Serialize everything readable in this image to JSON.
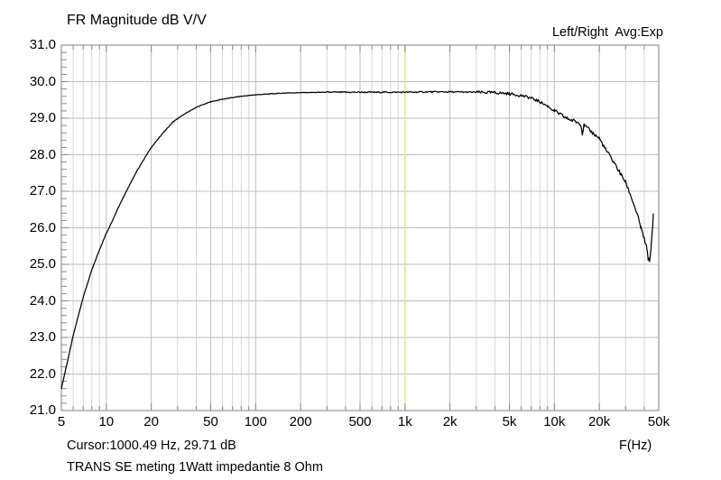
{
  "header": {
    "title": "FR Magnitude dB V/V",
    "channel_mode": "Left/Right  Avg:Exp"
  },
  "footer": {
    "cursor_readout": "Cursor:1000.49 Hz, 29.71 dB",
    "x_axis_unit": "F(Hz)",
    "comment": "TRANS SE meting 1Watt impedantie 8 Ohm"
  },
  "chart_data": {
    "type": "line",
    "title": "FR Magnitude dB V/V",
    "xlabel": "F(Hz)",
    "ylabel": "dB V/V",
    "x_scale": "log",
    "x_range_hz": [
      5,
      50000
    ],
    "y_range_db": [
      21.0,
      31.0
    ],
    "y_tick_step": 1.0,
    "y_minor_tick_step": 0.2,
    "grid": true,
    "legend_position": "top-right",
    "x_ticks": [
      {
        "label": "5",
        "hz": 5
      },
      {
        "label": "10",
        "hz": 10
      },
      {
        "label": "20",
        "hz": 20
      },
      {
        "label": "50",
        "hz": 50
      },
      {
        "label": "100",
        "hz": 100
      },
      {
        "label": "200",
        "hz": 200
      },
      {
        "label": "500",
        "hz": 500
      },
      {
        "label": "1k",
        "hz": 1000
      },
      {
        "label": "2k",
        "hz": 2000
      },
      {
        "label": "5k",
        "hz": 5000
      },
      {
        "label": "10k",
        "hz": 10000
      },
      {
        "label": "20k",
        "hz": 20000
      },
      {
        "label": "50k",
        "hz": 50000
      }
    ],
    "y_ticks": [
      {
        "label": "31.0",
        "db": 31.0
      },
      {
        "label": "30.0",
        "db": 30.0
      },
      {
        "label": "29.0",
        "db": 29.0
      },
      {
        "label": "28.0",
        "db": 28.0
      },
      {
        "label": "27.0",
        "db": 27.0
      },
      {
        "label": "26.0",
        "db": 26.0
      },
      {
        "label": "25.0",
        "db": 25.0
      },
      {
        "label": "24.0",
        "db": 24.0
      },
      {
        "label": "23.0",
        "db": 23.0
      },
      {
        "label": "22.0",
        "db": 22.0
      },
      {
        "label": "21.0",
        "db": 21.0
      }
    ],
    "cursor": {
      "hz": 1000.49,
      "db": 29.71
    },
    "series": [
      {
        "name": "Left/Right averaged frequency response",
        "color": "#000000",
        "points_hz_db": [
          [
            5,
            21.6
          ],
          [
            5.5,
            22.35
          ],
          [
            6,
            23.05
          ],
          [
            6.5,
            23.6
          ],
          [
            7,
            24.1
          ],
          [
            8,
            24.85
          ],
          [
            9,
            25.4
          ],
          [
            10,
            25.85
          ],
          [
            11,
            26.2
          ],
          [
            12,
            26.55
          ],
          [
            14,
            27.1
          ],
          [
            16,
            27.55
          ],
          [
            18,
            27.9
          ],
          [
            20,
            28.2
          ],
          [
            24,
            28.6
          ],
          [
            28,
            28.9
          ],
          [
            33,
            29.1
          ],
          [
            40,
            29.3
          ],
          [
            50,
            29.45
          ],
          [
            60,
            29.52
          ],
          [
            80,
            29.6
          ],
          [
            100,
            29.64
          ],
          [
            130,
            29.67
          ],
          [
            160,
            29.69
          ],
          [
            200,
            29.7
          ],
          [
            300,
            29.71
          ],
          [
            400,
            29.71
          ],
          [
            500,
            29.71
          ],
          [
            700,
            29.71
          ],
          [
            1000,
            29.71
          ],
          [
            1500,
            29.72
          ],
          [
            2000,
            29.72
          ],
          [
            3000,
            29.71
          ],
          [
            4000,
            29.7
          ],
          [
            5000,
            29.67
          ],
          [
            6000,
            29.62
          ],
          [
            7000,
            29.55
          ],
          [
            8000,
            29.45
          ],
          [
            9000,
            29.33
          ],
          [
            10000,
            29.2
          ],
          [
            11000,
            29.1
          ],
          [
            12000,
            29.0
          ],
          [
            13000,
            28.95
          ],
          [
            14000,
            28.9
          ],
          [
            15000,
            28.85
          ],
          [
            15400,
            28.58
          ],
          [
            15800,
            28.8
          ],
          [
            17000,
            28.7
          ],
          [
            18000,
            28.6
          ],
          [
            20000,
            28.45
          ],
          [
            22000,
            28.15
          ],
          [
            25000,
            27.8
          ],
          [
            28000,
            27.45
          ],
          [
            30000,
            27.25
          ],
          [
            33000,
            26.8
          ],
          [
            36000,
            26.35
          ],
          [
            38000,
            26.0
          ],
          [
            40000,
            25.7
          ],
          [
            41500,
            25.45
          ],
          [
            42500,
            25.15
          ],
          [
            43500,
            25.1
          ],
          [
            44500,
            25.5
          ],
          [
            45500,
            26.0
          ],
          [
            46000,
            26.4
          ]
        ]
      }
    ]
  },
  "colors": {
    "background": "#ffffff",
    "plot_border": "#7f7f7f",
    "grid_major": "#bdbdbd",
    "grid_minor": "#d5d5d5",
    "tick": "#8a8a8a",
    "cursor_line": "#e9e18c",
    "trace": "#000000",
    "text": "#000000"
  }
}
